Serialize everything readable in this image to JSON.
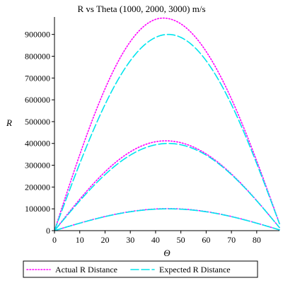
{
  "chart_data": {
    "type": "line",
    "title": "R vs Theta (1000, 2000, 3000) m/s",
    "xlabel": "Θ",
    "ylabel": "R",
    "xlim": [
      0,
      89
    ],
    "ylim": [
      0,
      980000
    ],
    "xticks": [
      0,
      10,
      20,
      30,
      40,
      50,
      60,
      70,
      80
    ],
    "yticks": [
      0,
      100000,
      200000,
      300000,
      400000,
      500000,
      600000,
      700000,
      800000,
      900000
    ],
    "grid": false,
    "legend_position": "bottom",
    "colors": {
      "actual": "#ff00ff",
      "expected": "#00e5ee"
    },
    "series": [
      {
        "name": "Actual R Distance",
        "style": "dotted",
        "color": "#ff00ff",
        "curves": [
          {
            "peak_theta": 45,
            "max_R": 101000
          },
          {
            "peak_theta": 44,
            "max_R": 412000
          },
          {
            "peak_theta": 43,
            "max_R": 975000
          }
        ]
      },
      {
        "name": "Expected R Distance",
        "style": "dashed",
        "color": "#00e5ee",
        "curves": [
          {
            "peak_theta": 45,
            "max_R": 100000
          },
          {
            "peak_theta": 45,
            "max_R": 400000
          },
          {
            "peak_theta": 45,
            "max_R": 900000
          }
        ]
      }
    ]
  }
}
